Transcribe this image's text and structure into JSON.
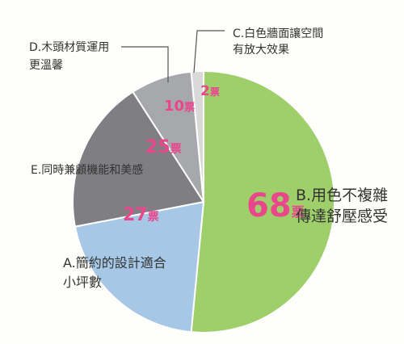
{
  "chart_data": {
    "type": "pie",
    "title": "",
    "total": 132,
    "unit": "票",
    "start_angle_deg": 0,
    "direction": "clockwise",
    "slices": [
      {
        "key": "B",
        "label_lines": [
          "B.用色不複雜",
          "傳達舒壓感受"
        ],
        "value": 68,
        "value_text": "68",
        "color": "#9fcf6a"
      },
      {
        "key": "A",
        "label_lines": [
          "A.簡約的設計適合",
          "小坪數"
        ],
        "value": 27,
        "value_text": "27",
        "color": "#a6c7e5"
      },
      {
        "key": "E",
        "label_lines": [
          "E.同時兼顧機能和美感"
        ],
        "value": 25,
        "value_text": "25",
        "color": "#7f7f83"
      },
      {
        "key": "D",
        "label_lines": [
          "D.木頭材質運用",
          "更溫馨"
        ],
        "value": 10,
        "value_text": "10",
        "color": "#a7a8ab"
      },
      {
        "key": "C",
        "label_lines": [
          "C.白色牆面讓空間",
          "有放大效果"
        ],
        "value": 2,
        "value_text": "2",
        "color": "#d9d9da"
      }
    ],
    "colors": {
      "value_label": "#e9468c",
      "text": "#333333",
      "leader_line": "#555555"
    }
  }
}
